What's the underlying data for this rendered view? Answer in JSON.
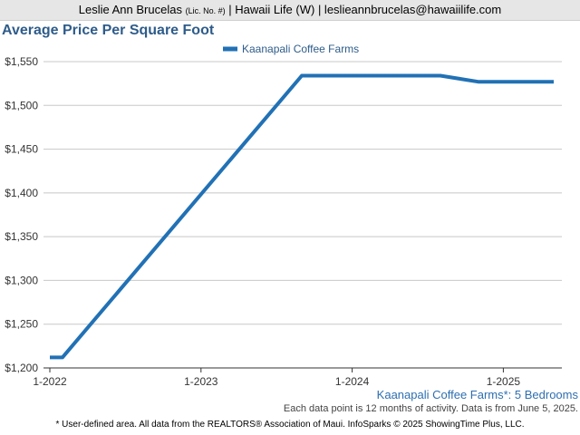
{
  "header": {
    "name": "Leslie Ann Brucelas",
    "license": "(Lic. No. #)",
    "rest": "| Hawaii Life (W) | leslieannbrucelas@hawaiilife.com"
  },
  "chart_data": {
    "type": "line",
    "title": "Average Price Per Square Foot",
    "subtitle": "Kaanapali Coffee Farms*: 5 Bedrooms",
    "note": "Each data point is 12 months of activity. Data is from June 5, 2025.",
    "footer": "* User-defined area. All data from the REALTORS® Association of Maui. InfoSparks © 2025 ShowingTime Plus, LLC.",
    "legend_position": "top-center",
    "grid": true,
    "xlim": [
      "2022-01",
      "2025-06"
    ],
    "ylim": [
      1200,
      1550
    ],
    "x_ticks": [
      "1-2022",
      "1-2023",
      "1-2024",
      "1-2025"
    ],
    "y_ticks": [
      "$1,200",
      "$1,250",
      "$1,300",
      "$1,350",
      "$1,400",
      "$1,450",
      "$1,500",
      "$1,550"
    ],
    "series": [
      {
        "name": "Kaanapali Coffee Farms",
        "color": "#2171b5",
        "points": [
          {
            "x": "2022-01",
            "y": 1212
          },
          {
            "x": "2022-02",
            "y": 1212
          },
          {
            "x": "2023-09",
            "y": 1534
          },
          {
            "x": "2024-08",
            "y": 1534
          },
          {
            "x": "2024-11",
            "y": 1527
          },
          {
            "x": "2025-05",
            "y": 1527
          }
        ]
      }
    ]
  }
}
